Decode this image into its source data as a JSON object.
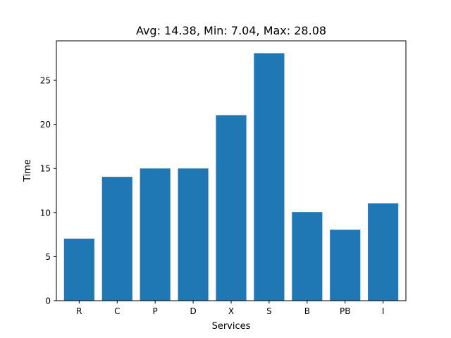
{
  "chart_data": {
    "type": "bar",
    "title": "Avg: 14.38, Min: 7.04, Max: 28.08",
    "xlabel": "Services",
    "ylabel": "Time",
    "categories": [
      "R",
      "C",
      "P",
      "D",
      "X",
      "S",
      "B",
      "PB",
      "I"
    ],
    "values": [
      7.04,
      14.05,
      15.0,
      15.0,
      21.05,
      28.08,
      10.05,
      8.05,
      11.05
    ],
    "ylim": [
      0,
      29.48
    ],
    "yticks": [
      0,
      5,
      10,
      15,
      20,
      25
    ],
    "grid": false,
    "bar_color": "#1f77b4"
  }
}
